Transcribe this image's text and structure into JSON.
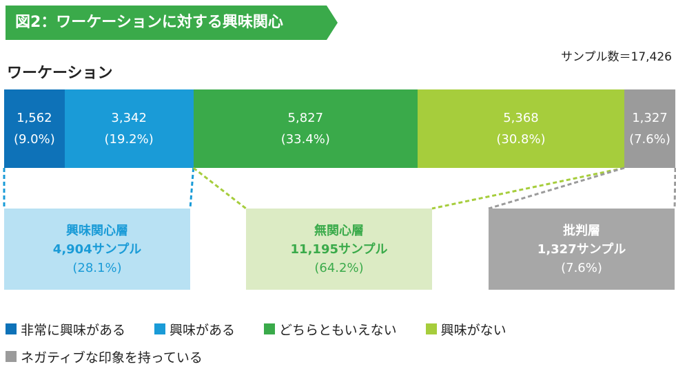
{
  "title": "図2：ワーケーションに対する興味関心",
  "sample_text": "サンプル数＝17,426",
  "subtitle": "ワーケーション",
  "colors": {
    "title_bg": "#3aaa4a",
    "very_interested": "#0e72b8",
    "interested": "#1a9bd7",
    "neutral": "#3aaa4a",
    "not_interested": "#a6cd3c",
    "negative": "#9b9b9b",
    "interest_box_bg": "#b8e1f3",
    "interest_box_text": "#1a9bd7",
    "indifferent_box_bg": "#dcebc4",
    "indifferent_box_text": "#3aaa4a",
    "critical_box_bg": "#a7a7a7",
    "critical_box_text": "#ffffff"
  },
  "chart_data": {
    "type": "bar",
    "orientation": "horizontal-stacked-100",
    "total": 17426,
    "series": [
      {
        "name": "非常に興味がある",
        "value": 1562,
        "value_label": "1,562",
        "pct_label": "(9.0%)",
        "share": 9.0
      },
      {
        "name": "興味がある",
        "value": 3342,
        "value_label": "3,342",
        "pct_label": "(19.2%)",
        "share": 19.2
      },
      {
        "name": "どちらともいえない",
        "value": 5827,
        "value_label": "5,827",
        "pct_label": "(33.4%)",
        "share": 33.4
      },
      {
        "name": "興味がない",
        "value": 5368,
        "value_label": "5,368",
        "pct_label": "(30.8%)",
        "share": 30.8
      },
      {
        "name": "ネガティブな印象を持っている",
        "value": 1327,
        "value_label": "1,327",
        "pct_label": "(7.6%)",
        "share": 7.6
      }
    ],
    "groups": [
      {
        "label": "興味関心層",
        "samples": "4,904サンプル",
        "pct": "(28.1%)"
      },
      {
        "label": "無関心層",
        "samples": "11,195サンプル",
        "pct": "(64.2%)"
      },
      {
        "label": "批判層",
        "samples": "1,327サンプル",
        "pct": "(7.6%)"
      }
    ],
    "legend": [
      "非常に興味がある",
      "興味がある",
      "どちらともいえない",
      "興味がない",
      "ネガティブな印象を持っている"
    ]
  }
}
